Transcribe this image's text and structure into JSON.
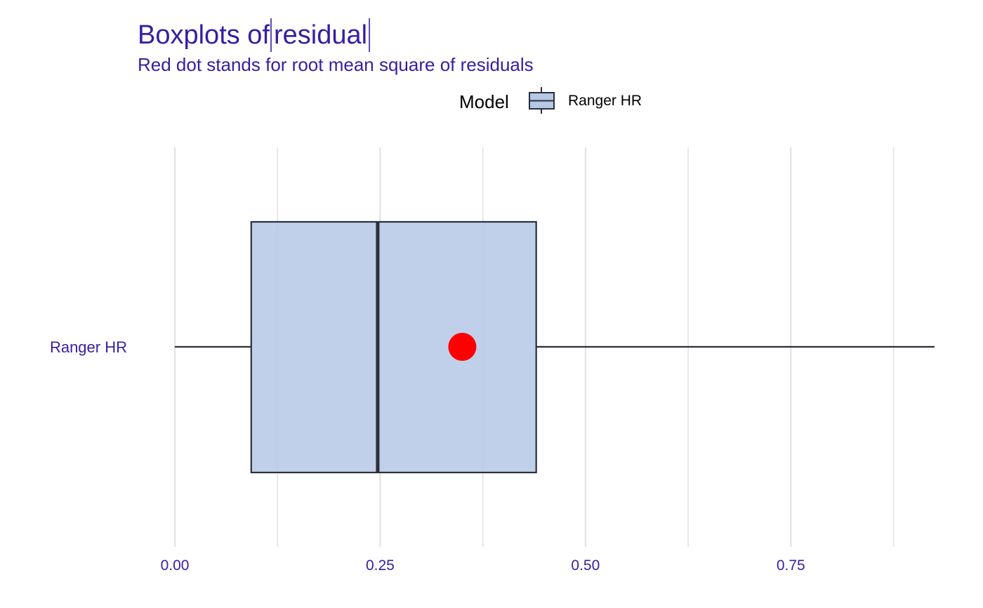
{
  "chart_data": {
    "type": "boxplot",
    "title_prefix": "Boxplots of ",
    "title_var": "residual",
    "subtitle": "Red dot stands for root mean square of residuals",
    "legend": {
      "title": "Model",
      "entries": [
        "Ranger HR"
      ],
      "position": "top"
    },
    "orientation": "horizontal",
    "categories": [
      "Ranger HR"
    ],
    "series": [
      {
        "name": "Ranger HR",
        "min": 0.0,
        "q1": 0.093,
        "median": 0.247,
        "q3": 0.44,
        "max": 0.925,
        "rmse": 0.35
      }
    ],
    "x_ticks": [
      0.0,
      0.25,
      0.5,
      0.75
    ],
    "x_tick_labels": [
      "0.00",
      "0.25",
      "0.50",
      "0.75"
    ],
    "xlim": [
      0.0,
      0.925
    ],
    "grid": true,
    "colors": {
      "title": "#371ea3",
      "box_fill": "#b5c8e6",
      "box_stroke": "#2b2f3a",
      "point": "#ff0000",
      "grid": "#e3e3e3"
    }
  }
}
